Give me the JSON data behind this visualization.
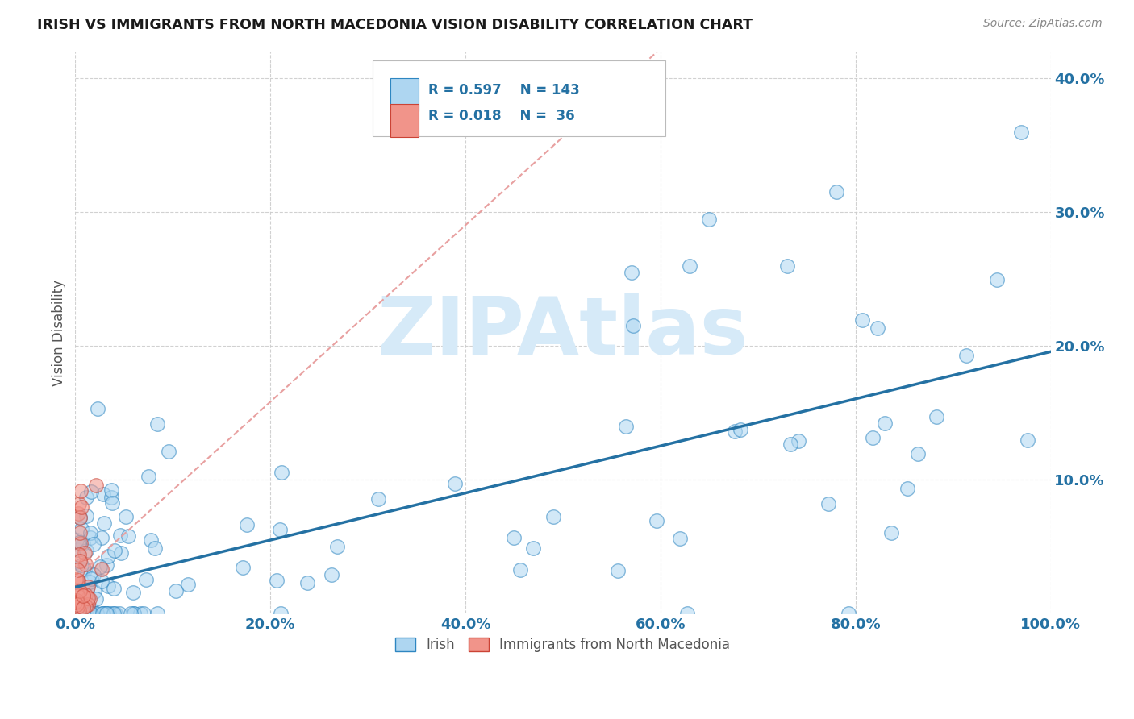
{
  "title": "IRISH VS IMMIGRANTS FROM NORTH MACEDONIA VISION DISABILITY CORRELATION CHART",
  "source": "Source: ZipAtlas.com",
  "ylabel": "Vision Disability",
  "xlim": [
    0,
    1.0
  ],
  "ylim": [
    0,
    0.42
  ],
  "yticks": [
    0.0,
    0.1,
    0.2,
    0.3,
    0.4
  ],
  "ytick_labels": [
    "",
    "10.0%",
    "20.0%",
    "30.0%",
    "40.0%"
  ],
  "xticks": [
    0.0,
    0.2,
    0.4,
    0.6,
    0.8,
    1.0
  ],
  "xtick_labels": [
    "0.0%",
    "20.0%",
    "40.0%",
    "60.0%",
    "80.0%",
    "100.0%"
  ],
  "blue_fill": "#AED6F1",
  "blue_edge": "#2E86C1",
  "pink_fill": "#F1948A",
  "pink_edge": "#CB4335",
  "blue_line": "#2471A3",
  "pink_line": "#E8A0A0",
  "watermark_color": "#D6EAF8",
  "background_color": "#FFFFFF",
  "legend_text_color": "#2471A3",
  "tick_color": "#2471A3",
  "title_color": "#1a1a1a",
  "source_color": "#888888",
  "ylabel_color": "#555555"
}
